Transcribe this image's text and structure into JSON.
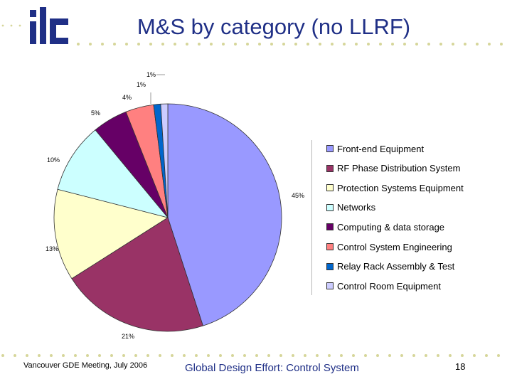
{
  "title": "M&S by category (no LLRF)",
  "logo_text": "ilc",
  "chart_data": {
    "type": "pie",
    "title": "",
    "categories": [
      "Front-end Equipment",
      "RF Phase Distribution System",
      "Protection Systems Equipment",
      "Networks",
      "Computing & data storage",
      "Control System Engineering",
      "Relay Rack Assembly & Test",
      "Control Room Equipment"
    ],
    "values": [
      45,
      21,
      13,
      10,
      5,
      4,
      1,
      1
    ],
    "labels": [
      "45%",
      "21%",
      "13%",
      "10%",
      "5%",
      "4%",
      "1%",
      "1%"
    ],
    "colors": [
      "#9999ff",
      "#993366",
      "#ffffcc",
      "#ccffff",
      "#660066",
      "#ff8080",
      "#0066cc",
      "#ccccff"
    ],
    "legend_position": "right"
  },
  "footer": {
    "left": "Vancouver GDE Meeting, July 2006",
    "center": "Global Design Effort: Control System",
    "page": "18"
  },
  "colors": {
    "title": "#1f2f86",
    "dots": "#d6d69a"
  }
}
